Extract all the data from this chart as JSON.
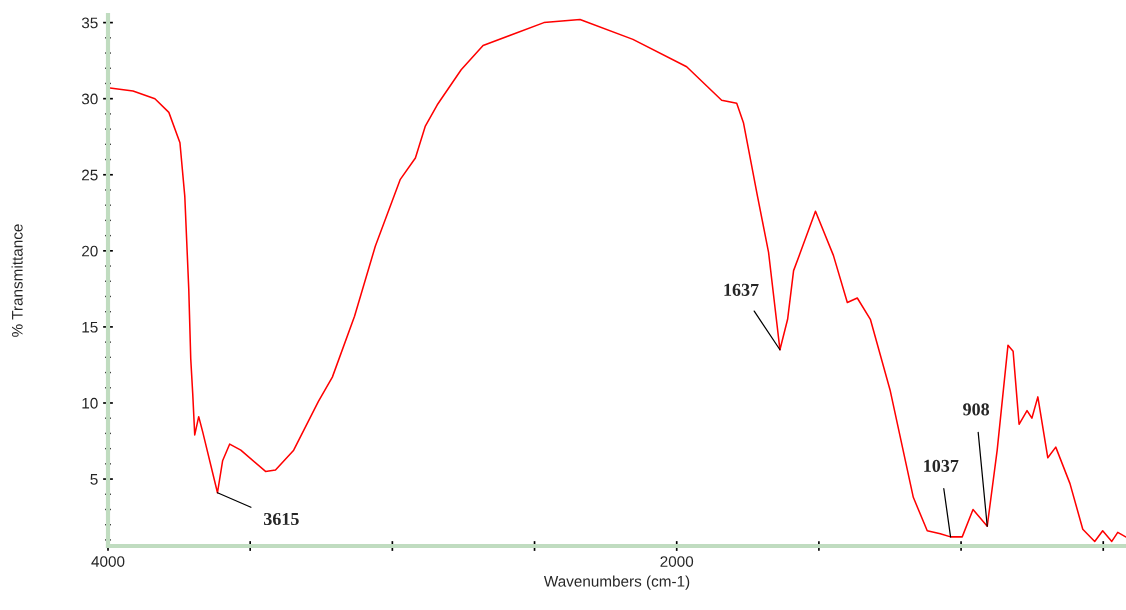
{
  "chart_data": {
    "type": "line",
    "xlabel": "Wavenumbers (cm-1)",
    "ylabel": "% Transmittance",
    "xlim": [
      4000,
      420
    ],
    "ylim": [
      0.6,
      35.5
    ],
    "xticks": [
      4000,
      {
        "value": 3500,
        "label": null
      },
      {
        "value": 3000,
        "label": null
      },
      {
        "value": 2500,
        "label": null
      },
      2000,
      {
        "value": 1500,
        "label": null
      },
      {
        "value": 1000,
        "label": null
      },
      {
        "value": 500,
        "label": null
      }
    ],
    "yticks": [
      5,
      10,
      15,
      20,
      25,
      30,
      35
    ],
    "grid": false,
    "legend": false,
    "marker": "none",
    "line_style": "solid",
    "series": [
      {
        "color": "#ff0000",
        "x": [
          3993,
          3912,
          3835,
          3786,
          3747,
          3730,
          3716,
          3709,
          3702,
          3695,
          3681,
          3667,
          3615,
          3597,
          3572,
          3533,
          3446,
          3411,
          3347,
          3260,
          3211,
          3133,
          3060,
          2972,
          2919,
          2884,
          2842,
          2758,
          2681,
          2467,
          2340,
          2154,
          1965,
          1842,
          1789,
          1765,
          1716,
          1677,
          1637,
          1610,
          1589,
          1565,
          1512,
          1449,
          1400,
          1365,
          1319,
          1249,
          1168,
          1119,
          1073,
          1037,
          996,
          958,
          908,
          873,
          835,
          817,
          796,
          768,
          751,
          730,
          695,
          667,
          617,
          572,
          530,
          502,
          470,
          449,
          421
        ],
        "values": [
          30.7,
          30.5,
          30.0,
          29.1,
          27.1,
          23.6,
          17.5,
          12.9,
          10.6,
          7.9,
          9.1,
          8.1,
          4.1,
          6.2,
          7.3,
          6.9,
          5.5,
          5.6,
          6.9,
          10.1,
          11.7,
          15.7,
          20.3,
          24.7,
          26.1,
          28.2,
          29.6,
          31.9,
          33.5,
          35.0,
          35.2,
          33.9,
          32.1,
          29.9,
          29.7,
          28.4,
          23.6,
          19.9,
          13.5,
          15.5,
          18.7,
          19.9,
          22.6,
          19.7,
          16.6,
          16.9,
          15.5,
          10.8,
          3.8,
          1.6,
          1.4,
          1.2,
          1.2,
          3.0,
          1.9,
          6.9,
          13.8,
          13.4,
          8.6,
          9.5,
          9.0,
          10.4,
          6.4,
          7.1,
          4.7,
          1.7,
          0.9,
          1.6,
          0.9,
          1.5,
          1.2
        ]
      }
    ],
    "annotations": [
      {
        "text": "3615",
        "x": 3615,
        "y": 4.1
      },
      {
        "text": "1637",
        "x": 1637,
        "y": 13.5
      },
      {
        "text": "1037",
        "x": 1037,
        "y": 1.2
      },
      {
        "text": "908",
        "x": 908,
        "y": 1.9
      }
    ]
  }
}
